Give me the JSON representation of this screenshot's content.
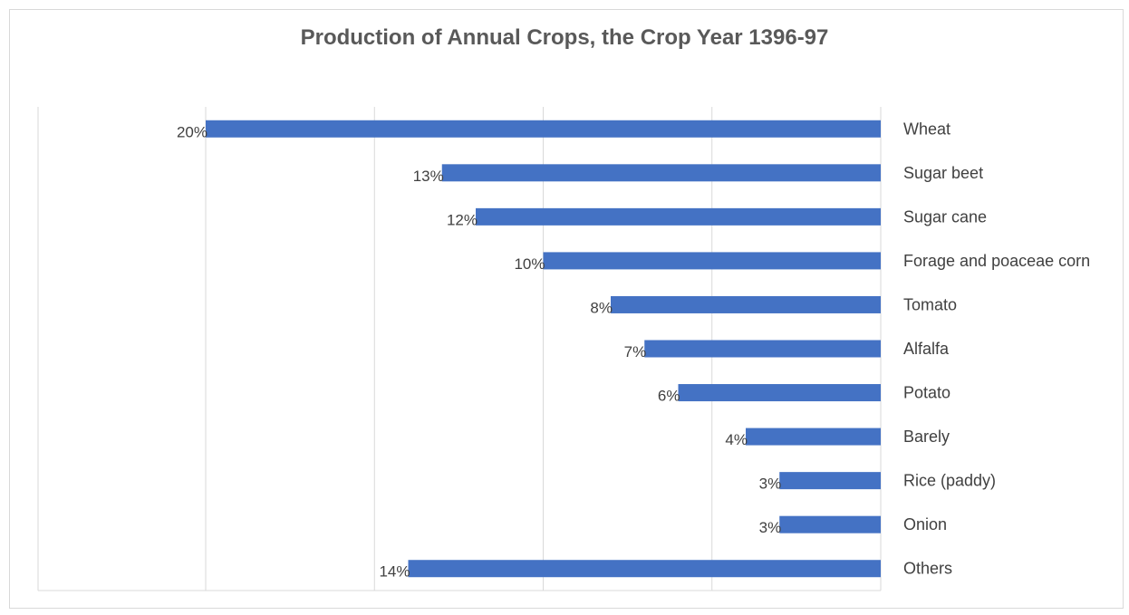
{
  "chart_data": {
    "type": "bar",
    "orientation": "horizontal",
    "x_axis_reversed": true,
    "title": "Production of  Annual Crops, the Crop Year 1396-97",
    "xlabel": "",
    "ylabel": "",
    "categories": [
      "Wheat",
      "Sugar beet",
      "Sugar cane",
      "Forage and  poaceae corn",
      "Tomato",
      "Alfalfa",
      "Potato",
      "Barely",
      "Rice (paddy)",
      "Onion",
      "Others"
    ],
    "values": [
      20,
      13,
      12,
      10,
      8,
      7,
      6,
      4,
      3,
      3,
      14
    ],
    "labels": [
      "20%",
      "13%",
      "12%",
      "10%",
      "8%",
      "7%",
      "6%",
      "4%",
      "3%",
      "3%",
      "14%"
    ],
    "xlim": [
      0,
      25
    ],
    "grid": true,
    "legend": "none",
    "bar_color": "#4472c4",
    "grid_color": "#d9d9d9",
    "text_color": "#404040"
  }
}
